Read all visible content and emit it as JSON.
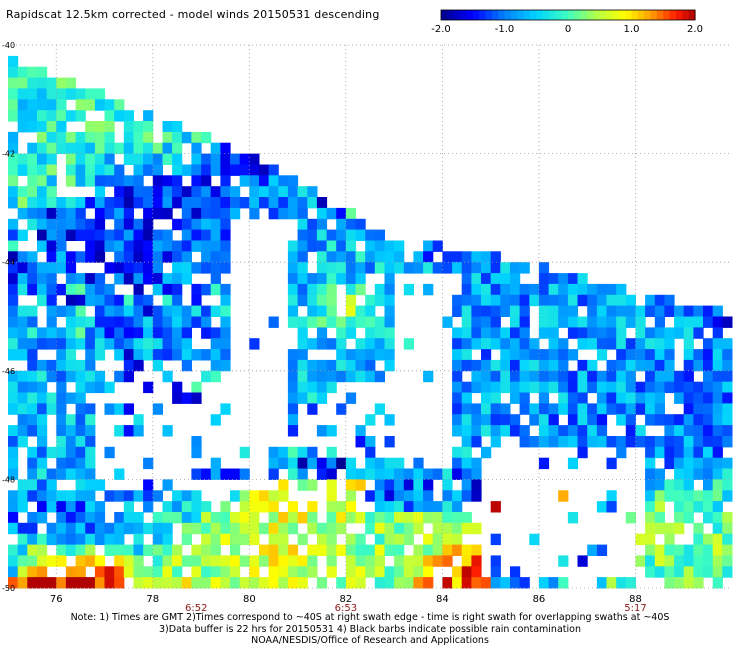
{
  "title": "Rapidscat 12.5km corrected - model winds 20150531 descending",
  "colorbar": {
    "ticks": [
      "-2.0",
      "-1.0",
      "0",
      "1.0",
      "2.0"
    ],
    "colors": [
      "#00008b",
      "#0000ff",
      "#0080ff",
      "#00d0ff",
      "#40ffc0",
      "#c0ff40",
      "#ffff00",
      "#ffa000",
      "#ff2000",
      "#b00000"
    ]
  },
  "chart_data": {
    "type": "heatmap",
    "title": "Rapidscat 12.5km corrected - model winds 20150531 descending",
    "xlim": [
      75,
      90
    ],
    "ylim": [
      -50,
      -40
    ],
    "x_ticks": [
      "76",
      "78",
      "80",
      "82",
      "84",
      "86",
      "88"
    ],
    "y_ticks": [
      "-40",
      "-42",
      "-44",
      "-46",
      "-48",
      "-50"
    ],
    "value_range": [
      -2.0,
      2.0
    ],
    "time_labels": [
      {
        "x": 78.9,
        "label": "6:52"
      },
      {
        "x": 82.0,
        "label": "6:53"
      },
      {
        "x": 88.0,
        "label": "5:17"
      }
    ],
    "grid": true,
    "regions": [
      {
        "lon": [
          75.0,
          79.2
        ],
        "lat": [
          -42.5,
          -40.5
        ],
        "mean": -0.2
      },
      {
        "lon": [
          77.0,
          80.0
        ],
        "lat": [
          -43.8,
          -42.0
        ],
        "mean": -1.3
      },
      {
        "lon": [
          78.8,
          80.8
        ],
        "lat": [
          -44.0,
          -42.8
        ],
        "mean": -0.8
      },
      {
        "lon": [
          80.8,
          82.8
        ],
        "lat": [
          -46.0,
          -44.0
        ],
        "mean": -0.6
      },
      {
        "lon": [
          81.6,
          82.3
        ],
        "lat": [
          -45.1,
          -44.6
        ],
        "mean": 1.9
      },
      {
        "lon": [
          84.6,
          88.5
        ],
        "lat": [
          -46.5,
          -44.0
        ],
        "mean": -0.8
      },
      {
        "lon": [
          86.5,
          89.8
        ],
        "lat": [
          -48.5,
          -46.0
        ],
        "mean": -0.9
      },
      {
        "lon": [
          75.0,
          76.7
        ],
        "lat": [
          -48.5,
          -46.0
        ],
        "mean": -0.7
      },
      {
        "lon": [
          75.0,
          79.5
        ],
        "lat": [
          -49.5,
          -48.3
        ],
        "mean": -1.1
      },
      {
        "lon": [
          77.0,
          81.5
        ],
        "lat": [
          -50.0,
          -48.5
        ],
        "mean": 0.6
      },
      {
        "lon": [
          75.5,
          77.5
        ],
        "lat": [
          -50.0,
          -49.3
        ],
        "mean": 1.9
      },
      {
        "lon": [
          81.5,
          84.0
        ],
        "lat": [
          -50.0,
          -49.0
        ],
        "mean": 0.3
      },
      {
        "lon": [
          83.5,
          84.5
        ],
        "lat": [
          -50.0,
          -49.5
        ],
        "mean": 1.5
      },
      {
        "lon": [
          85.5,
          86.3
        ],
        "lat": [
          -48.5,
          -48.1
        ],
        "mean": 1.9
      },
      {
        "lon": [
          88.0,
          89.8
        ],
        "lat": [
          -50.0,
          -48.0
        ],
        "mean": 0.2
      }
    ]
  },
  "notes": [
    "Note: 1) Times are GMT 2)Times correspond to ~40S at right swath edge - time is right swath for overlapping swaths at ~40S",
    "3)Data buffer is 22 hrs for 20150531 4) Black barbs indicate possible rain contamination",
    "NOAA/NESDIS/Office of Research and Applications"
  ]
}
